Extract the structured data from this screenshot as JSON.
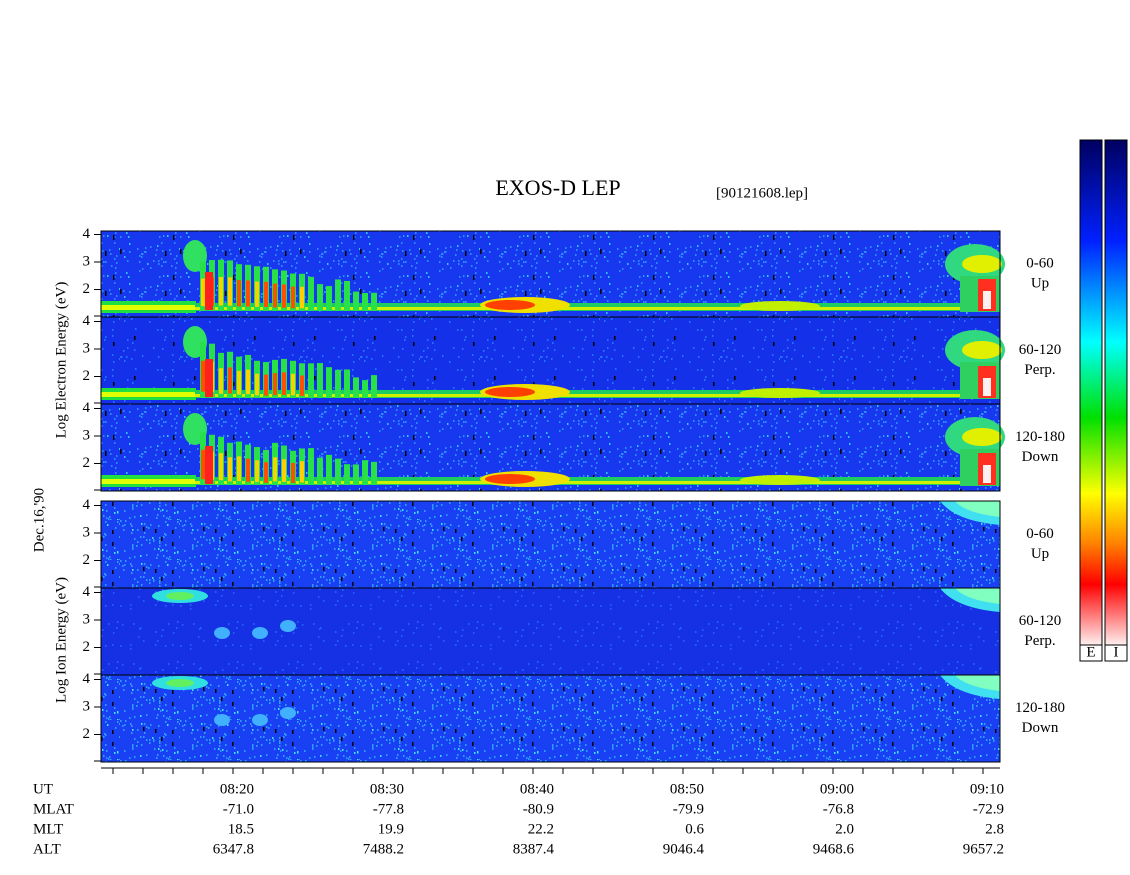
{
  "title": "EXOS-D LEP",
  "file": "[90121608.lep]",
  "date": "Dec.16,'90",
  "groups": [
    {
      "ylabel": "Log Electron Energy (eV)",
      "panels": [
        {
          "yticks": [
            2,
            3,
            4
          ],
          "angle": "0-60",
          "direction": "Up"
        },
        {
          "yticks": [
            2,
            3,
            4
          ],
          "angle": "60-120",
          "direction": "Perp."
        },
        {
          "yticks": [
            2,
            3,
            4
          ],
          "angle": "120-180",
          "direction": "Down"
        }
      ]
    },
    {
      "ylabel": "Log Ion Energy (eV)",
      "panels": [
        {
          "yticks": [
            2,
            3,
            4
          ],
          "angle": "0-60",
          "direction": "Up"
        },
        {
          "yticks": [
            2,
            3,
            4
          ],
          "angle": "60-120",
          "direction": "Perp."
        },
        {
          "yticks": [
            2,
            3,
            4
          ],
          "angle": "120-180",
          "direction": "Down"
        }
      ]
    }
  ],
  "x_axis": {
    "rows": [
      {
        "label": "UT",
        "values": [
          "08:20",
          "08:30",
          "08:40",
          "08:50",
          "09:00",
          "09:10"
        ]
      },
      {
        "label": "MLAT",
        "values": [
          "-71.0",
          "-77.8",
          "-80.9",
          "-79.9",
          "-76.8",
          "-72.9"
        ]
      },
      {
        "label": "MLT",
        "values": [
          "18.5",
          "19.9",
          "22.2",
          "0.6",
          "2.0",
          "2.8"
        ]
      },
      {
        "label": "ALT",
        "values": [
          "6347.8",
          "7488.2",
          "8387.4",
          "9046.4",
          "9468.6",
          "9657.2"
        ]
      }
    ]
  },
  "colorbars": [
    "E",
    "I"
  ]
}
